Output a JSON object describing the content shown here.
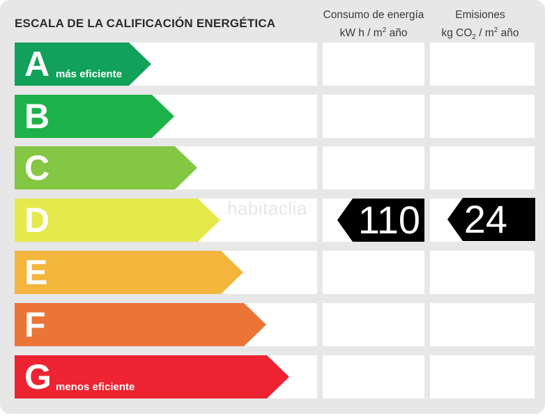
{
  "title": "ESCALA DE LA CALIFICACIÓN ENERGÉTICA",
  "columns": {
    "consumo": {
      "line1": "Consumo de energía",
      "unit_prefix": "kW h  / m",
      "unit_sup": "2",
      "unit_suffix": " año"
    },
    "emisiones": {
      "line1": "Emisiones",
      "unit_prefix": "kg CO",
      "unit_sub": "2",
      "unit_mid": " / m",
      "unit_sup": "2",
      "unit_suffix": " año"
    }
  },
  "ratings": [
    {
      "letter": "A",
      "label": "más eficiente",
      "color": "#12a15a"
    },
    {
      "letter": "B",
      "label": "",
      "color": "#1db249"
    },
    {
      "letter": "C",
      "label": "",
      "color": "#84c743"
    },
    {
      "letter": "D",
      "label": "",
      "color": "#e4ea4b"
    },
    {
      "letter": "E",
      "label": "",
      "color": "#f4b53c"
    },
    {
      "letter": "F",
      "label": "",
      "color": "#ea7536"
    },
    {
      "letter": "G",
      "label": "menos eficiente",
      "color": "#ed2332"
    }
  ],
  "current_rating": "D",
  "consumo_value": "110",
  "emisiones_value": "24",
  "watermark": "habitaclia"
}
